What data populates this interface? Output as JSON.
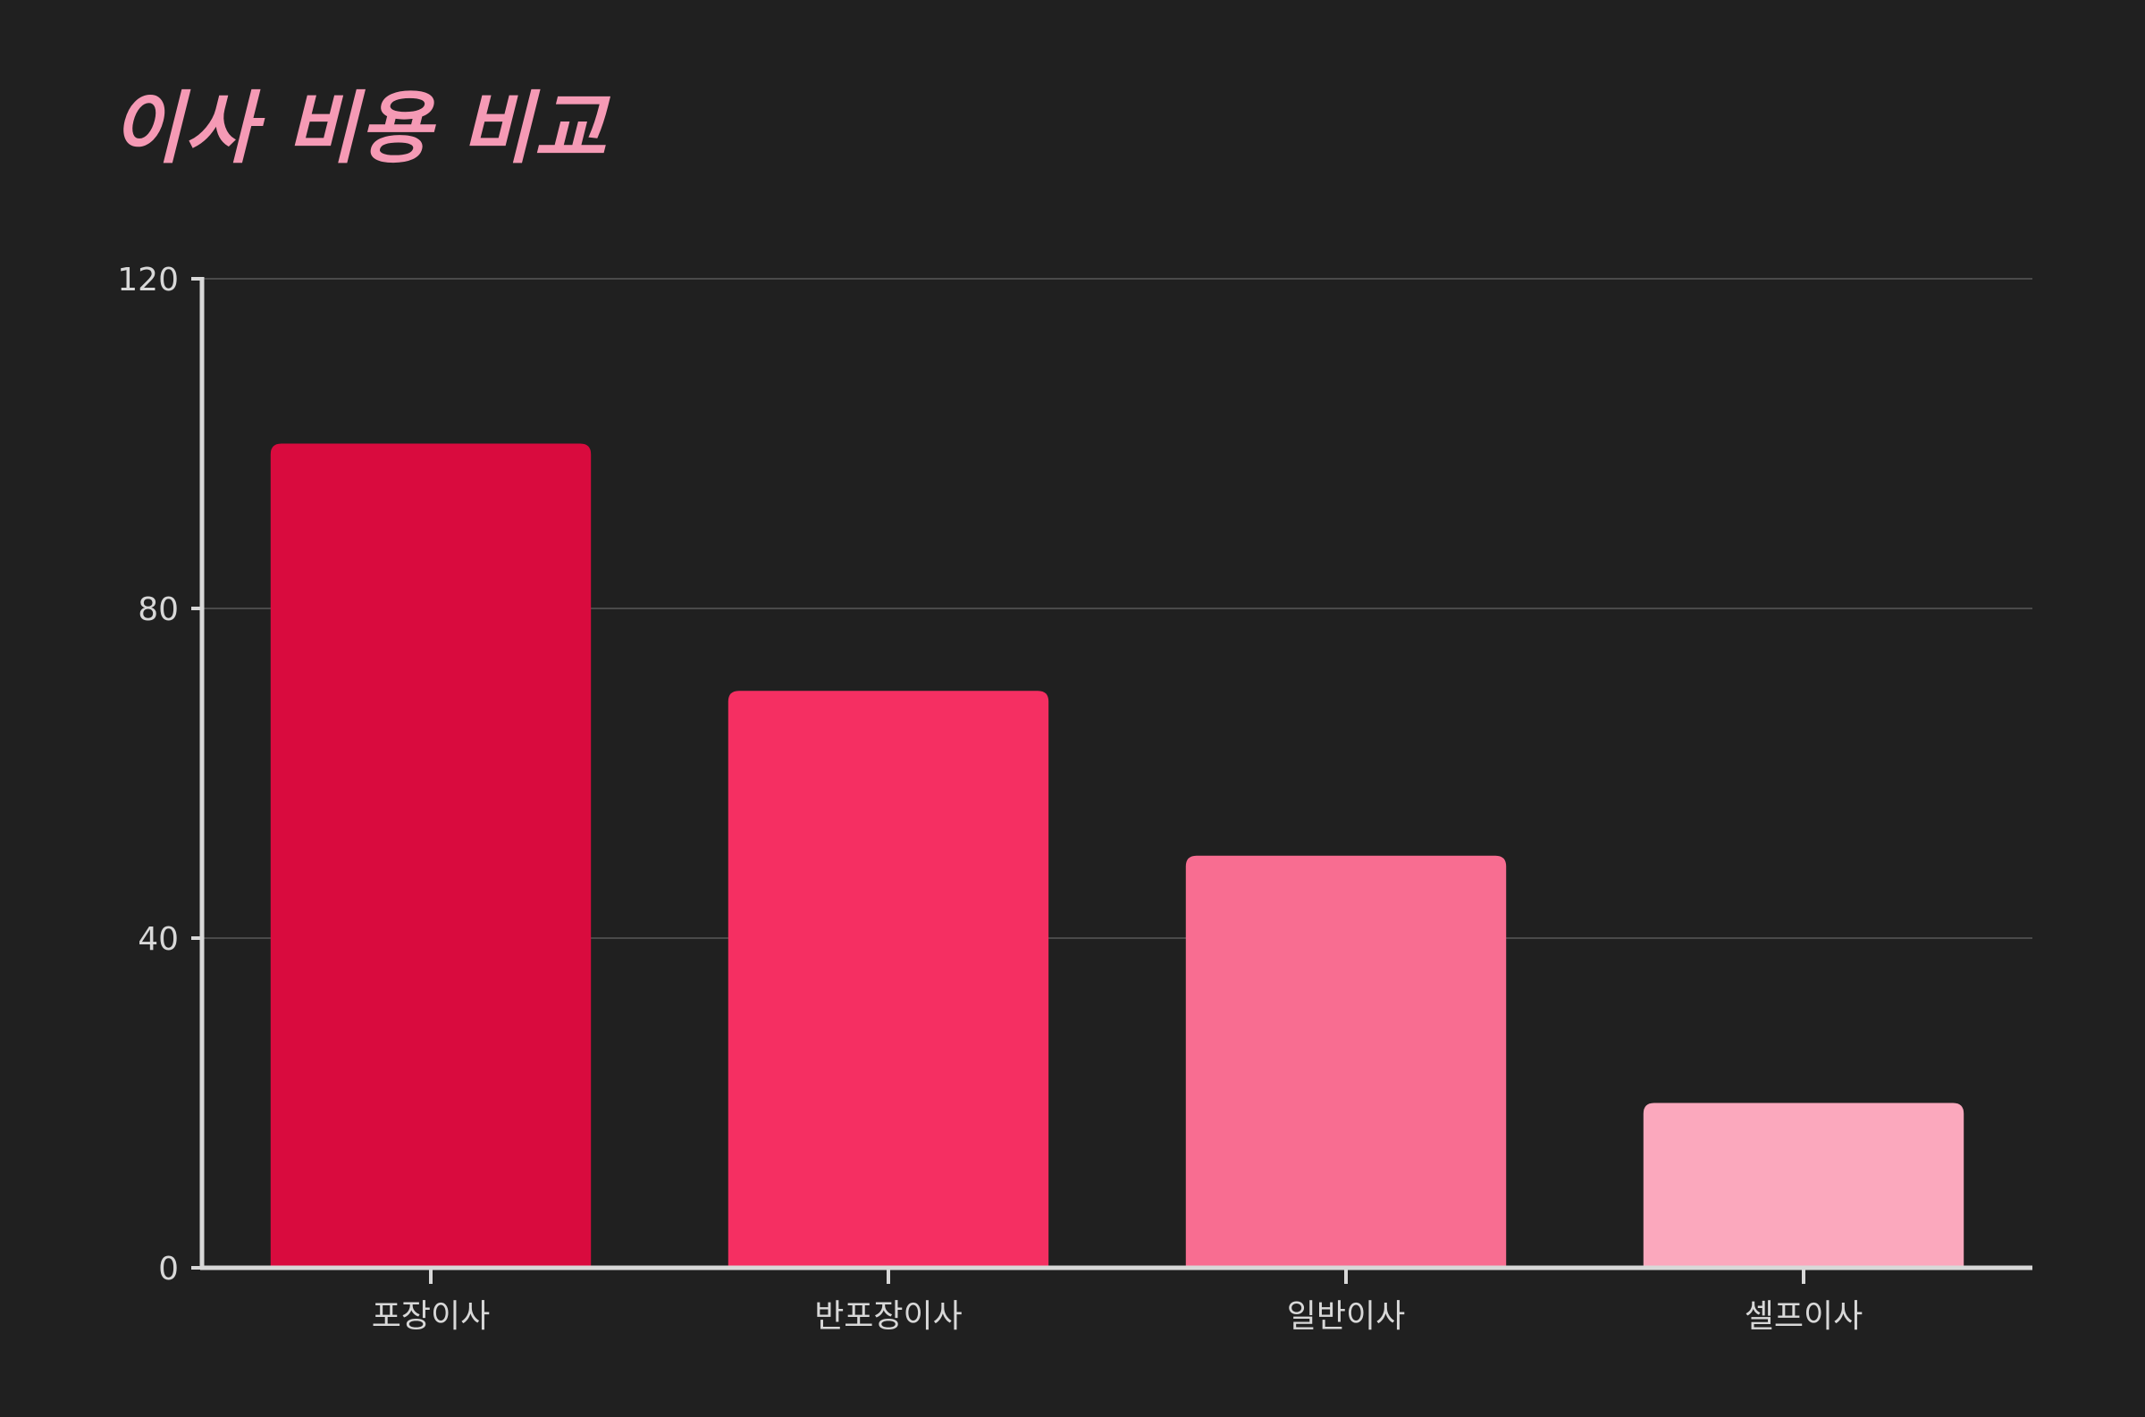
{
  "chart_data": {
    "type": "bar",
    "title": "이사 비용 비교",
    "categories": [
      "포장이사",
      "반포장이사",
      "일반이사",
      "셀프이사"
    ],
    "values": [
      100,
      70,
      50,
      20
    ],
    "colors": [
      "#d90b3e",
      "#f52f62",
      "#f86d91",
      "#fba8bd"
    ],
    "xlabel": "",
    "ylabel": "",
    "ylim": [
      0,
      120
    ],
    "yticks": [
      "0",
      "40",
      "80",
      "120"
    ],
    "grid": true,
    "legend": "none"
  },
  "colors": {
    "background": "#202020",
    "title": "#f59ab5",
    "axis": "#d8d8d8",
    "grid": "#4a4a4a"
  }
}
